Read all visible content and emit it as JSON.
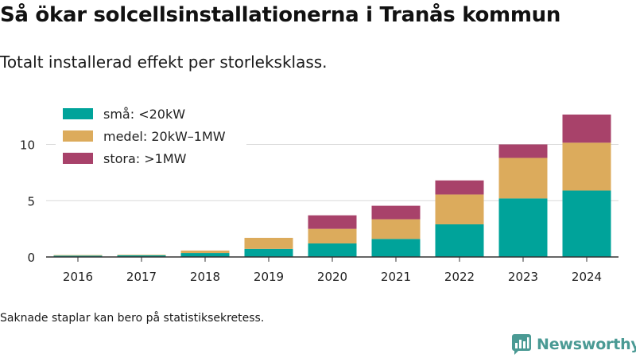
{
  "title": "Så ökar solcellsinstallationerna i Tranås kommun",
  "subtitle": "Totalt installerad effekt per storleksklass.",
  "footnote": "Saknade staplar kan bero på statistiksekretess.",
  "brand": "Newsworthy",
  "brand_icon": "newsworthy-chat-bars-icon",
  "chart_data": {
    "type": "bar",
    "stacked": true,
    "categories": [
      "2016",
      "2017",
      "2018",
      "2019",
      "2020",
      "2021",
      "2022",
      "2023",
      "2024"
    ],
    "series": [
      {
        "name": "små: <20kW",
        "color": "#00a39a",
        "values": [
          0.12,
          0.15,
          0.35,
          0.72,
          1.2,
          1.6,
          2.9,
          5.2,
          5.9
        ]
      },
      {
        "name": "medel: 20kW–1MW",
        "color": "#dcab5c",
        "values": [
          0.05,
          0.05,
          0.22,
          0.98,
          1.3,
          1.75,
          2.65,
          3.6,
          4.25
        ]
      },
      {
        "name": "stora: >1MW",
        "color": "#a8426a",
        "values": [
          0,
          0,
          0,
          0,
          1.2,
          1.2,
          1.25,
          1.2,
          2.5
        ]
      }
    ],
    "yticks": [
      0,
      5,
      10
    ],
    "ylim": [
      0,
      13
    ],
    "grid": true,
    "legend": "top-left",
    "xlabel": "",
    "ylabel": ""
  }
}
